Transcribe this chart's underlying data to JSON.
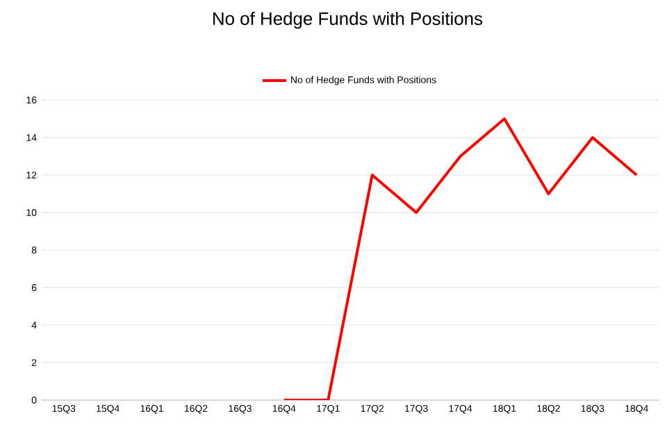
{
  "chart_data": {
    "type": "line",
    "title": "No of Hedge Funds with Positions",
    "categories": [
      "15Q3",
      "15Q4",
      "16Q1",
      "16Q2",
      "16Q3",
      "16Q4",
      "17Q1",
      "17Q2",
      "17Q3",
      "17Q4",
      "18Q1",
      "18Q2",
      "18Q3",
      "18Q4"
    ],
    "series": [
      {
        "name": "No of Hedge Funds with Positions",
        "color": "#ff0000",
        "values": [
          null,
          null,
          null,
          null,
          null,
          0,
          0,
          12,
          10,
          13,
          15,
          11,
          14,
          12
        ]
      }
    ],
    "ylim": [
      0,
      16
    ],
    "yticks": [
      0,
      2,
      4,
      6,
      8,
      10,
      12,
      14,
      16
    ],
    "grid": "y",
    "legend": "top",
    "marker": "none",
    "line_style": "solid"
  }
}
